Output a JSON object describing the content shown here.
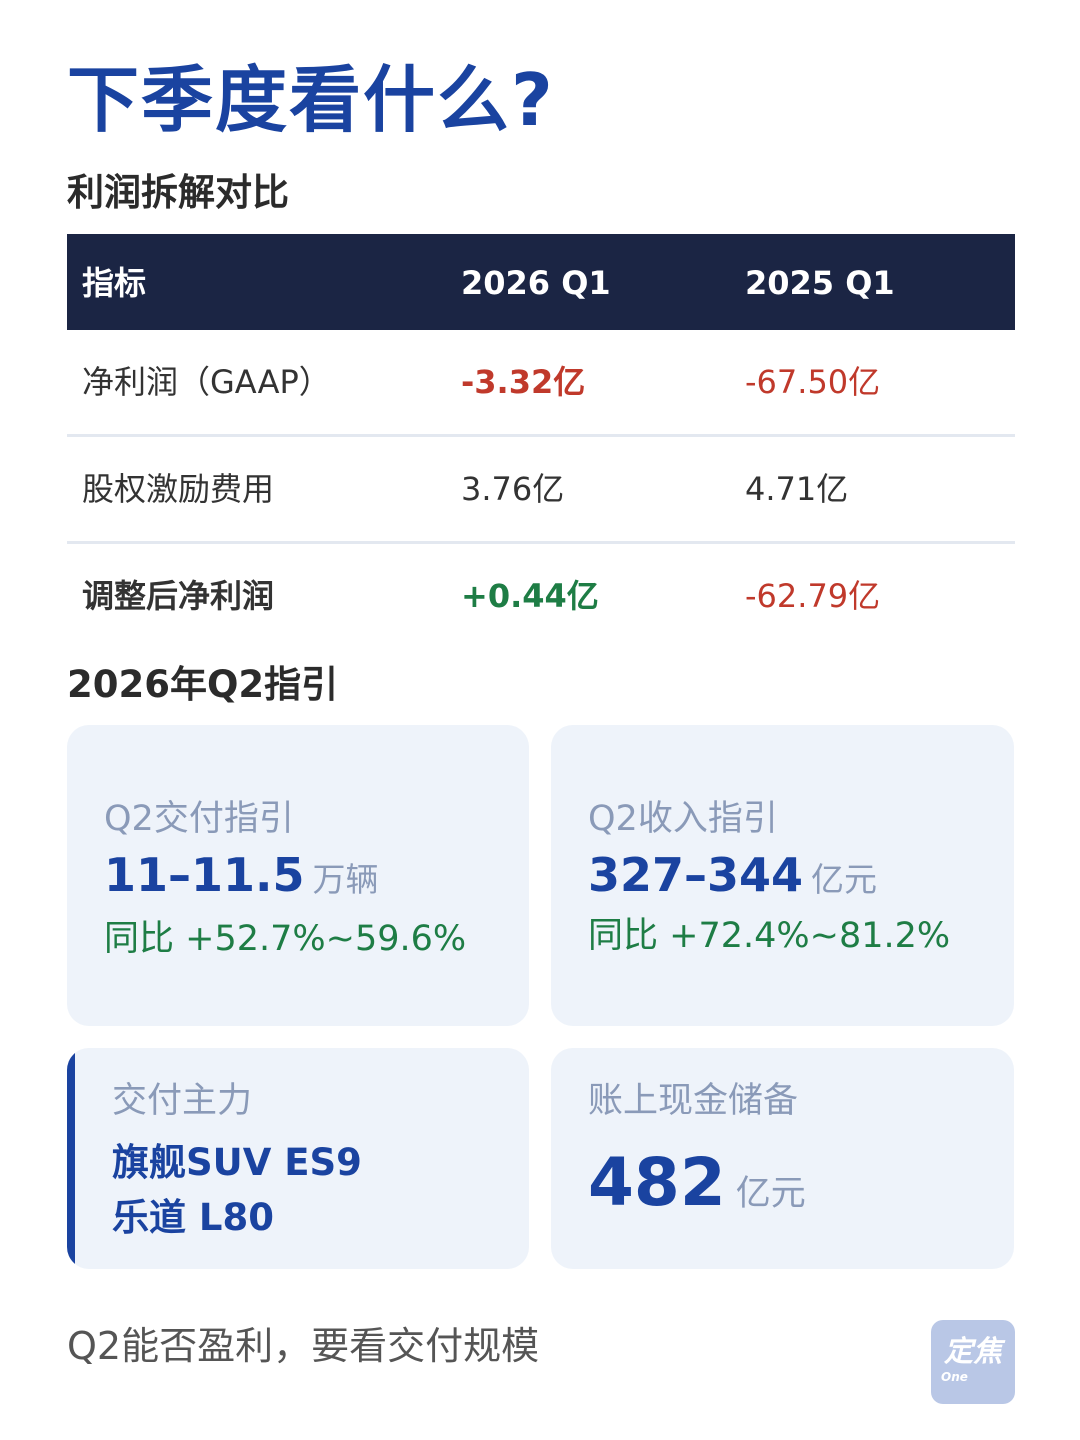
{
  "page_title": "下季度看什么?",
  "profit_section": {
    "title": "利润拆解对比",
    "headers": [
      "指标",
      "2026 Q1",
      "2025 Q1"
    ],
    "rows": [
      {
        "label": "净利润（GAAP）",
        "q1_2026": "-3.32亿",
        "q1_2025": "-67.50亿"
      },
      {
        "label": "股权激励费用",
        "q1_2026": "3.76亿",
        "q1_2025": "4.71亿"
      },
      {
        "label": "调整后净利润",
        "q1_2026": "+0.44亿",
        "q1_2025": "-62.79亿"
      }
    ]
  },
  "guidance_section": {
    "title": "2026年Q2指引",
    "delivery": {
      "label": "Q2交付指引",
      "value": "11–11.5",
      "unit": "万辆",
      "yoy": "同比 +52.7%~59.6%"
    },
    "revenue": {
      "label": "Q2收入指引",
      "value": "327–344",
      "unit": "亿元",
      "yoy": "同比 +72.4%~81.2%"
    },
    "main_models": {
      "label": "交付主力",
      "line1": "旗舰SUV ES9",
      "line2": "乐道 L80"
    },
    "cash": {
      "label": "账上现金储备",
      "value": "482",
      "unit": "亿元"
    }
  },
  "footer": {
    "text": "Q2能否盈利，要看交付规模",
    "logo_main": "定焦",
    "logo_sub": "One"
  },
  "colors": {
    "brand_blue": "#1a43a0",
    "header_navy": "#1b2544",
    "negative_red": "#c0392b",
    "positive_green": "#1e7d45",
    "card_bg": "#eef3fa"
  }
}
